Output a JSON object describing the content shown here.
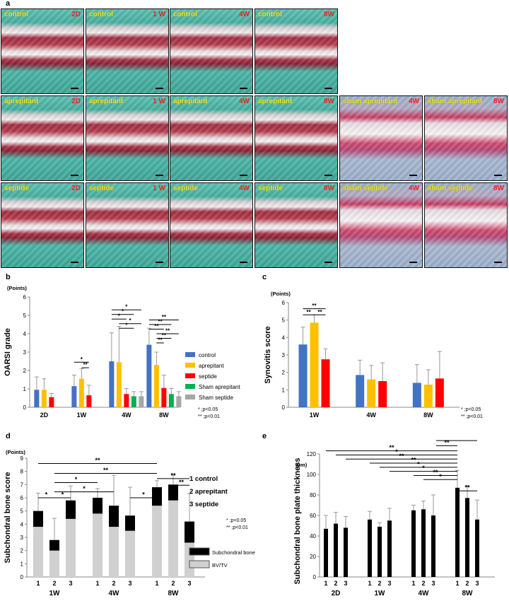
{
  "panel_letters": {
    "a": "a",
    "b": "b",
    "c": "c",
    "d": "d",
    "e": "e"
  },
  "micrographs": {
    "rows": [
      [
        {
          "label": "control",
          "timepoint": "2D",
          "style": "normal"
        },
        {
          "label": "control",
          "timepoint": "1 W",
          "style": "normal"
        },
        {
          "label": "control",
          "timepoint": "4W",
          "style": "normal"
        },
        {
          "label": "control",
          "timepoint": "8W",
          "style": "normal"
        }
      ],
      [
        {
          "label": "aprepitant",
          "timepoint": "2D",
          "style": "normal"
        },
        {
          "label": "aprepitant",
          "timepoint": "1 W",
          "style": "normal"
        },
        {
          "label": "aprepitant",
          "timepoint": "4W",
          "style": "normal"
        },
        {
          "label": "aprepitant",
          "timepoint": "8W",
          "style": "normal"
        },
        {
          "label": "sham aprepitant",
          "timepoint": "4W",
          "style": "sham"
        },
        {
          "label": "sham aprepitant",
          "timepoint": "8W",
          "style": "sham"
        }
      ],
      [
        {
          "label": "septide",
          "timepoint": "2D",
          "style": "normal"
        },
        {
          "label": "septide",
          "timepoint": "1 W",
          "style": "normal"
        },
        {
          "label": "septide",
          "timepoint": "4W",
          "style": "normal"
        },
        {
          "label": "septide",
          "timepoint": "8W",
          "style": "normal"
        },
        {
          "label": "sham septide",
          "timepoint": "4W",
          "style": "sham"
        },
        {
          "label": "sham septide",
          "timepoint": "8W",
          "style": "sham"
        }
      ]
    ]
  },
  "colors": {
    "control": "#4472c4",
    "aprepitant": "#ffc000",
    "septide": "#ff0000",
    "sham_aprepitant": "#00b050",
    "sham_septide": "#a6a6a6",
    "plate": "#000000",
    "bvtv": "#d0d0d0"
  },
  "chart_data": [
    {
      "id": "b",
      "type": "bar",
      "unit_label": "(Points)",
      "ylabel": "OARSI grade",
      "ylim": [
        0,
        6
      ],
      "yticks": [
        0,
        1,
        2,
        3,
        4,
        5,
        6
      ],
      "categories": [
        "2D",
        "1W",
        "4W",
        "8W"
      ],
      "series": [
        {
          "name": "control",
          "color_key": "control",
          "values": [
            0.95,
            1.15,
            2.5,
            3.4
          ],
          "errors": [
            0.7,
            0.6,
            1.55,
            0.9
          ]
        },
        {
          "name": "aprepitant",
          "color_key": "aprepitant",
          "values": [
            0.95,
            1.55,
            2.45,
            2.3
          ],
          "errors": [
            0.6,
            0.55,
            1.95,
            0.7
          ]
        },
        {
          "name": "septide",
          "color_key": "septide",
          "values": [
            0.55,
            0.65,
            0.72,
            1.05
          ],
          "errors": [
            0.2,
            0.55,
            0.3,
            0.7
          ]
        },
        {
          "name": "Sham aprepitant",
          "color_key": "sham_aprepitant",
          "values": [
            null,
            null,
            0.6,
            0.72
          ],
          "errors": [
            null,
            null,
            0.25,
            0.3
          ]
        },
        {
          "name": "Sham septide",
          "color_key": "sham_septide",
          "values": [
            null,
            null,
            0.6,
            0.6
          ],
          "errors": [
            null,
            null,
            0.25,
            0.25
          ]
        }
      ],
      "sig_lines": [
        {
          "group": 1,
          "from": 0,
          "to": 2,
          "y": 2.45,
          "label": "*"
        },
        {
          "group": 1,
          "from": 1,
          "to": 2,
          "y": 2.15,
          "label": "**"
        },
        {
          "group": 2,
          "from": 0,
          "to": 4,
          "y": 5.3,
          "label": "*"
        },
        {
          "group": 2,
          "from": 0,
          "to": 3,
          "y": 5.05,
          "label": "*"
        },
        {
          "group": 2,
          "from": 0,
          "to": 2,
          "y": 4.8,
          "label": "*"
        },
        {
          "group": 2,
          "from": 1,
          "to": 4,
          "y": 4.55,
          "label": "*"
        },
        {
          "group": 2,
          "from": 1,
          "to": 3,
          "y": 4.3,
          "label": "*"
        },
        {
          "group": 3,
          "from": 0,
          "to": 4,
          "y": 4.75,
          "label": "**"
        },
        {
          "group": 3,
          "from": 0,
          "to": 3,
          "y": 4.5,
          "label": "**"
        },
        {
          "group": 3,
          "from": 0,
          "to": 2,
          "y": 4.25,
          "label": "**"
        },
        {
          "group": 3,
          "from": 1,
          "to": 4,
          "y": 4.0,
          "label": "**"
        },
        {
          "group": 3,
          "from": 1,
          "to": 3,
          "y": 3.75,
          "label": "**"
        },
        {
          "group": 3,
          "from": 1,
          "to": 2,
          "y": 3.5,
          "label": "**"
        }
      ],
      "legend": [
        "control",
        "aprepitant",
        "septide",
        "Sham aprepitant",
        "Sham septide"
      ],
      "legend_position": "right",
      "notes": [
        "*  ;p<0.05",
        "** ;p<0.01"
      ]
    },
    {
      "id": "c",
      "type": "bar",
      "unit_label": "(Points)",
      "ylabel": "Synovitis score",
      "ylim": [
        0,
        6
      ],
      "yticks": [
        0,
        1,
        2,
        3,
        4,
        5,
        6
      ],
      "categories": [
        "1W",
        "4W",
        "8W"
      ],
      "series": [
        {
          "name": "control",
          "color_key": "control",
          "values": [
            3.6,
            1.85,
            1.4
          ],
          "errors": [
            1.0,
            0.85,
            1.05
          ]
        },
        {
          "name": "aprepitant",
          "color_key": "aprepitant",
          "values": [
            4.85,
            1.6,
            1.3
          ],
          "errors": [
            0.45,
            0.8,
            0.85
          ]
        },
        {
          "name": "septide",
          "color_key": "septide",
          "values": [
            2.75,
            1.5,
            1.65
          ],
          "errors": [
            0.6,
            1.05,
            1.55
          ]
        }
      ],
      "sig_lines": [
        {
          "group": 0,
          "from": 0,
          "to": 2,
          "y": 5.65,
          "label": "**"
        },
        {
          "group": 0,
          "from": 0,
          "to": 1,
          "y": 5.3,
          "label": "**"
        },
        {
          "group": 0,
          "from": 1,
          "to": 2,
          "y": 5.3,
          "label": "**"
        }
      ],
      "notes": [
        "*  ;p<0.05",
        "** ;p<0.01"
      ]
    },
    {
      "id": "d",
      "type": "bar",
      "stacked": true,
      "unit_label": "(Points)",
      "ylabel": "Subchondral bone score",
      "ylim": [
        0,
        9
      ],
      "yticks": [
        0,
        1,
        2,
        3,
        4,
        5,
        6,
        7,
        8,
        9
      ],
      "categories": [
        "1W",
        "4W",
        "8W"
      ],
      "group_labels": [
        "1",
        "2",
        "3"
      ],
      "stack_series": [
        {
          "name": "BV/TV",
          "color_key": "bvtv",
          "values": [
            [
              3.8,
              2.0,
              4.4
            ],
            [
              4.8,
              3.8,
              3.5
            ],
            [
              5.4,
              5.8,
              2.6
            ]
          ]
        },
        {
          "name": "Subchondral bone plate",
          "color_key": "plate",
          "values": [
            [
              1.2,
              0.8,
              1.4
            ],
            [
              1.2,
              1.6,
              1.15
            ],
            [
              1.4,
              1.2,
              1.6
            ]
          ]
        }
      ],
      "errors": [
        [
          1.35,
          1.65,
          1.1
        ],
        [
          0.7,
          2.3,
          2.15
        ],
        [
          0.5,
          0.7,
          2.1
        ]
      ],
      "sig_lines": [
        {
          "from": [
            0,
            0
          ],
          "to": [
            2,
            0
          ],
          "y": 8.6,
          "label": "**"
        },
        {
          "from": [
            0,
            1
          ],
          "to": [
            2,
            0
          ],
          "y": 7.85,
          "label": "**"
        },
        {
          "from": [
            0,
            1
          ],
          "to": [
            1,
            0
          ],
          "y": 7.15,
          "label": "*"
        },
        {
          "from": [
            0,
            1
          ],
          "to": [
            1,
            1
          ],
          "y": 6.45,
          "label": "*"
        },
        {
          "from": [
            0,
            0
          ],
          "to": [
            0,
            1
          ],
          "y": 6.0,
          "label": "*"
        },
        {
          "from": [
            0,
            1
          ],
          "to": [
            0,
            2
          ],
          "y": 6.0,
          "label": "*"
        },
        {
          "from": [
            1,
            2
          ],
          "to": [
            2,
            0
          ],
          "y": 6.0,
          "label": "*"
        },
        {
          "from": [
            2,
            0
          ],
          "to": [
            2,
            2
          ],
          "y": 7.45,
          "label": "**"
        },
        {
          "from": [
            2,
            1
          ],
          "to": [
            2,
            2
          ],
          "y": 6.95,
          "label": "**"
        }
      ],
      "group_key": [
        "1  control",
        "2  aprepitant",
        "3  septide"
      ],
      "legend": [
        "Subchondral bone plate",
        "BV/TV"
      ],
      "notes": [
        "*  ;p<0.05",
        "** ;p<0.01"
      ]
    },
    {
      "id": "e",
      "type": "bar",
      "unit_label": "(μm)",
      "ylabel": "Subchondral bone plate thickness",
      "ylim": [
        0,
        120
      ],
      "yticks": [
        0,
        20,
        40,
        60,
        80,
        100,
        120
      ],
      "categories": [
        "2D",
        "1W",
        "4W",
        "8W"
      ],
      "group_labels": [
        "1",
        "2",
        "3"
      ],
      "values": [
        [
          47,
          52,
          48
        ],
        [
          56,
          49,
          55
        ],
        [
          65,
          66,
          60
        ],
        [
          87,
          77,
          56
        ]
      ],
      "errors": [
        [
          13,
          11,
          11
        ],
        [
          8,
          4,
          12
        ],
        [
          5,
          8,
          20
        ],
        [
          17,
          12,
          19
        ]
      ],
      "sig_lines": [
        {
          "from": [
            0,
            0
          ],
          "to": [
            3,
            0
          ],
          "y": 123,
          "label": "**"
        },
        {
          "from": [
            0,
            1
          ],
          "to": [
            3,
            0
          ],
          "y": 119,
          "label": "*"
        },
        {
          "from": [
            0,
            2
          ],
          "to": [
            3,
            0
          ],
          "y": 115,
          "label": "**"
        },
        {
          "from": [
            1,
            0
          ],
          "to": [
            3,
            0
          ],
          "y": 111,
          "label": "**"
        },
        {
          "from": [
            1,
            1
          ],
          "to": [
            3,
            0
          ],
          "y": 107,
          "label": "*"
        },
        {
          "from": [
            1,
            2
          ],
          "to": [
            3,
            0
          ],
          "y": 103,
          "label": "*"
        },
        {
          "from": [
            2,
            0
          ],
          "to": [
            3,
            0
          ],
          "y": 99,
          "label": "**"
        },
        {
          "from": [
            2,
            1
          ],
          "to": [
            3,
            0
          ],
          "y": 95,
          "label": "*"
        },
        {
          "from": [
            2,
            2
          ],
          "to": [
            3,
            0
          ],
          "y": 128,
          "label": "**"
        },
        {
          "from": [
            2,
            2
          ],
          "to": [
            3,
            0
          ],
          "y": 133,
          "label": "**"
        },
        {
          "from": [
            3,
            0
          ],
          "to": [
            3,
            2
          ],
          "y": 133,
          "label": "**"
        },
        {
          "from": [
            3,
            0
          ],
          "to": [
            3,
            2
          ],
          "y": 84,
          "label": "**"
        }
      ]
    }
  ]
}
